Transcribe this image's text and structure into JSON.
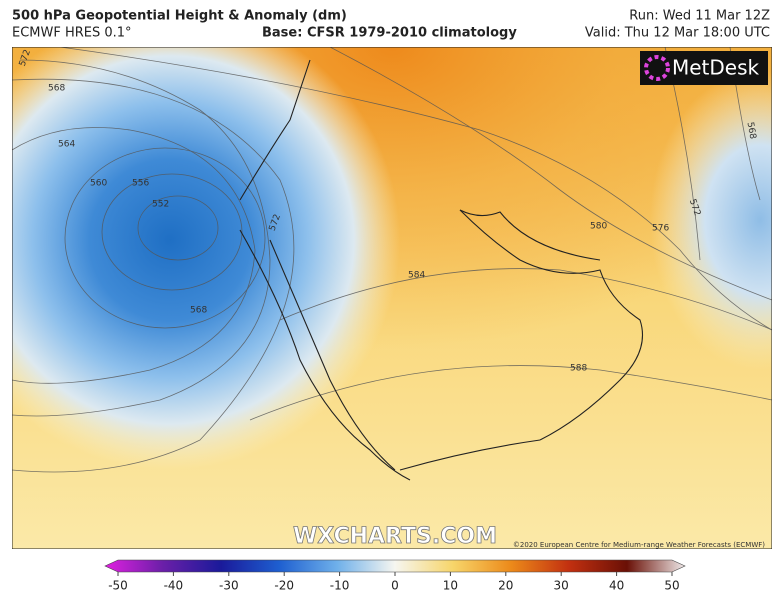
{
  "header": {
    "title": "500 hPa Geopotential Height & Anomaly (dm)",
    "model": "ECMWF HRES 0.1°",
    "base": "Base: CFSR 1979-2010 climatology",
    "run": "Run: Wed 11 Mar 12Z",
    "valid": "Valid: Thu 12 Mar 18:00 UTC"
  },
  "map": {
    "logo": "MetDesk",
    "watermark": "WXCHARTS.COM",
    "copyright": "©2020 European Centre for Medium-range Weather Forecasts (ECMWF)",
    "contour_labels": [
      572,
      568,
      564,
      560,
      556,
      552,
      572,
      568,
      584,
      580,
      576,
      588,
      572,
      568
    ]
  },
  "colorbar": {
    "ticks": [
      -50,
      -40,
      -30,
      -20,
      -10,
      0,
      10,
      20,
      30,
      40,
      50
    ]
  }
}
